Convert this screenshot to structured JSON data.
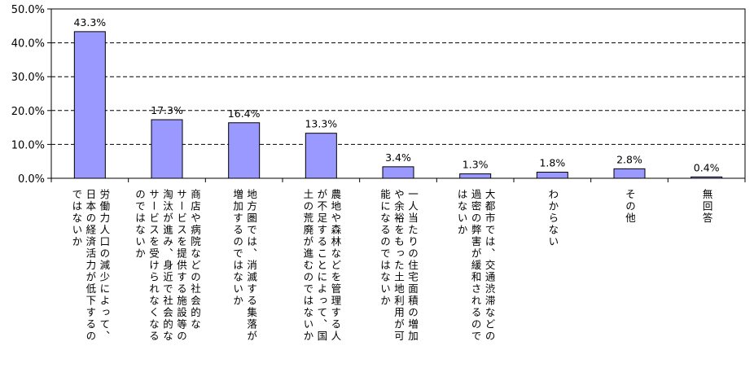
{
  "chart_data": {
    "type": "bar",
    "categories": [
      "労働力人口の減少によって、日本の経済活力が低下するのではないか",
      "商店や病院などの社会的なサービスを提供する施設等の淘汰が進み、身近で社会的なサービスを受けられなくなるのではないか",
      "地方圏では、消滅する集落が増加するのではないか",
      "農地や森林などを管理する人が不足することによって、国土の荒廃が進むのではないか",
      "一人当たりの住宅面積の増加や余裕をもった土地利用が可能になるのではないか",
      "大都市では、交通渋滞などの過密の弊害が緩和されるのではないか",
      "わからない",
      "その他",
      "無回答"
    ],
    "category_lines": [
      [
        "労働力人口の減少によって、",
        "日本の経済活力が低下するの",
        "ではないか"
      ],
      [
        "商店や病院などの社会的な",
        "サービスを提供する施設等の",
        "淘汰が進み、身近で社会的な",
        "サービスを受けられなくなる",
        "のではないか"
      ],
      [
        "地方圏では、消滅する集落が",
        "増加するのではないか"
      ],
      [
        "農地や森林などを管理する人",
        "が不足することによって、国",
        "土の荒廃が進むのではないか"
      ],
      [
        "一人当たりの住宅面積の増加",
        "や余裕をもった土地利用が可",
        "能になるのではないか"
      ],
      [
        "大都市では、交通渋滞などの",
        "過密の弊害が緩和されるので",
        "はないか"
      ],
      [
        "わからない"
      ],
      [
        "その他"
      ],
      [
        "無回答"
      ]
    ],
    "values": [
      43.3,
      17.3,
      16.4,
      13.3,
      3.4,
      1.3,
      1.8,
      2.8,
      0.4
    ],
    "value_labels": [
      "43.3%",
      "17.3%",
      "16.4%",
      "13.3%",
      "3.4%",
      "1.3%",
      "1.8%",
      "2.8%",
      "0.4%"
    ],
    "ylim": [
      0,
      50
    ],
    "yticks": [
      0,
      10,
      20,
      30,
      40,
      50
    ],
    "ytick_labels": [
      "0.0%",
      "10.0%",
      "20.0%",
      "30.0%",
      "40.0%",
      "50.0%"
    ],
    "grid": "horizontal dashed",
    "legend": "none",
    "colors": {
      "bar_fill": "#9999ff",
      "bar_stroke": "#000000",
      "grid": "#000000",
      "text": "#000000"
    }
  }
}
